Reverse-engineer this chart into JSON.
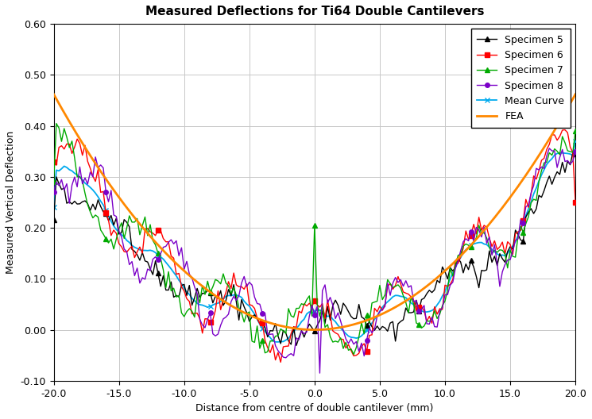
{
  "title": "Measured Deflections for Ti64 Double Cantilevers",
  "xlabel": "Distance from centre of double cantilever (mm)",
  "ylabel": "Measured Vertical Deflection",
  "xlim": [
    -20,
    20
  ],
  "ylim": [
    -0.1,
    0.6
  ],
  "xticks": [
    -20.0,
    -15.0,
    -10.0,
    -5.0,
    0.0,
    5.0,
    10.0,
    15.0,
    20.0
  ],
  "yticks": [
    -0.1,
    0.0,
    0.1,
    0.2,
    0.3,
    0.4,
    0.5,
    0.6
  ],
  "background_color": "#ffffff",
  "grid_color": "#c8c8c8",
  "series": {
    "specimen5": {
      "color": "#000000",
      "label": "Specimen 5",
      "marker": "^",
      "ms": 4,
      "lw": 1.0
    },
    "specimen6": {
      "color": "#ff0000",
      "label": "Specimen 6",
      "marker": "s",
      "ms": 4,
      "lw": 1.0
    },
    "specimen7": {
      "color": "#00aa00",
      "label": "Specimen 7",
      "marker": "^",
      "ms": 4,
      "lw": 1.0
    },
    "specimen8": {
      "color": "#7b00c8",
      "label": "Specimen 8",
      "marker": "o",
      "ms": 4,
      "lw": 1.0
    },
    "mean": {
      "color": "#00aaee",
      "label": "Mean Curve",
      "marker": "x",
      "ms": 5,
      "lw": 1.3
    },
    "fea": {
      "color": "#ff8800",
      "label": "FEA",
      "marker": "",
      "ms": 0,
      "lw": 2.0
    }
  },
  "title_fontsize": 11,
  "axis_fontsize": 9,
  "tick_fontsize": 9,
  "legend_fontsize": 9
}
